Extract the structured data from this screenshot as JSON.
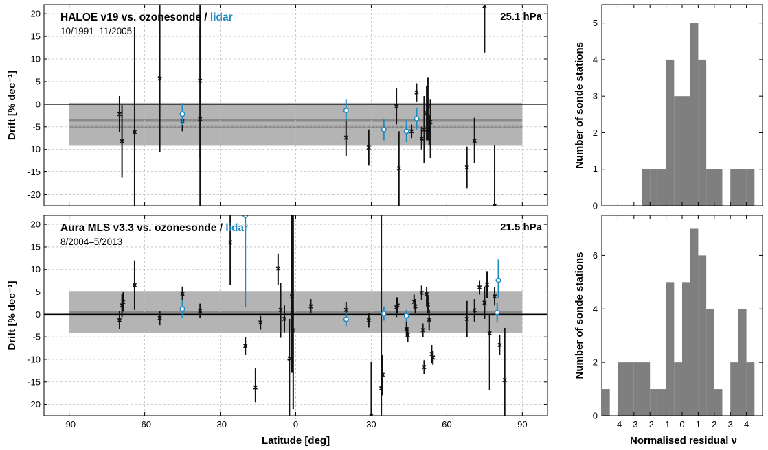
{
  "colors": {
    "sonde": "#111111",
    "lidar": "#1f8ac0",
    "band_outer": "#b4b4b4",
    "band_inner": "#8a8a8a",
    "hist": "#7f7f7f",
    "grid": "#bdbdbd"
  },
  "chart_data": [
    {
      "type": "scatter",
      "id": "drift-haloe",
      "title_prefix": "HALOE v19 vs. ozonesonde / ",
      "title_lidar": "lidar",
      "subtitle": "10/1991–11/2005",
      "level": "25.1 hPa",
      "ylabel": "Drift [% dec⁻¹]",
      "xlabel": "",
      "xlim": [
        -100,
        100
      ],
      "ylim": [
        -22.5,
        22
      ],
      "xticks": [
        -90,
        -60,
        -30,
        0,
        30,
        60,
        90
      ],
      "yticks": [
        -20,
        -15,
        -10,
        -5,
        0,
        5,
        10,
        15,
        20
      ],
      "grid": true,
      "mean_lines": [
        -3.6,
        -5.0
      ],
      "band": [
        -9.2,
        0.3
      ],
      "series": [
        {
          "type": "sonde",
          "points": [
            {
              "x": -70,
              "y": -2.2,
              "lo": -6.2,
              "hi": 1.8
            },
            {
              "x": -69,
              "y": -8.2,
              "lo": -16.2,
              "hi": -0.2
            },
            {
              "x": -64,
              "y": -6.2,
              "lo": -22.5,
              "hi": 17
            },
            {
              "x": -54,
              "y": 5.7,
              "lo": -10.5,
              "hi": 22
            },
            {
              "x": -45,
              "y": -3.8,
              "lo": -6,
              "hi": -1.6
            },
            {
              "x": -38,
              "y": 5.2,
              "lo": -22.5,
              "hi": 22
            },
            {
              "x": -38,
              "y": -3.3,
              "lo": -12,
              "hi": 17
            },
            {
              "x": 20,
              "y": -7.4,
              "lo": -11.4,
              "hi": -3.4
            },
            {
              "x": 29,
              "y": -9.6,
              "lo": -13.6,
              "hi": -5.6
            },
            {
              "x": 40,
              "y": -0.5,
              "lo": -4.5,
              "hi": 3.5
            },
            {
              "x": 41,
              "y": -14.2,
              "lo": -22.5,
              "hi": -6
            },
            {
              "x": 46,
              "y": -6.0,
              "lo": -7.5,
              "hi": -4.5
            },
            {
              "x": 48,
              "y": 2.6,
              "lo": 0.6,
              "hi": 4.6
            },
            {
              "x": 50,
              "y": -7.6,
              "lo": -10,
              "hi": -5
            },
            {
              "x": 51,
              "y": -5.6,
              "lo": -13,
              "hi": 1.8
            },
            {
              "x": 52,
              "y": -2.0,
              "lo": -8,
              "hi": 4
            },
            {
              "x": 52.5,
              "y": -0.5,
              "lo": -8,
              "hi": 6
            },
            {
              "x": 53,
              "y": -5.7,
              "lo": -9,
              "hi": -2.4
            },
            {
              "x": 53.5,
              "y": -4.0,
              "lo": -12,
              "hi": 1
            },
            {
              "x": 68,
              "y": -14.0,
              "lo": -18.6,
              "hi": -9.4
            },
            {
              "x": 71,
              "y": -8.1,
              "lo": -13,
              "hi": -3
            },
            {
              "x": 75,
              "y": 21.8,
              "lo": 11.4,
              "hi": 22
            },
            {
              "x": 79,
              "y": -22.5,
              "lo": -22.5,
              "hi": -9
            }
          ]
        },
        {
          "type": "lidar",
          "points": [
            {
              "x": -45,
              "y": -2.2,
              "lo": -4.6,
              "hi": 0.2
            },
            {
              "x": 20,
              "y": -1.4,
              "lo": -3.8,
              "hi": 1
            },
            {
              "x": 35,
              "y": -5.6,
              "lo": -8,
              "hi": -3.2
            },
            {
              "x": 44,
              "y": -6.0,
              "lo": -8.4,
              "hi": -3.6
            },
            {
              "x": 48,
              "y": -3.2,
              "lo": -5.6,
              "hi": -0.8
            }
          ]
        }
      ]
    },
    {
      "type": "scatter",
      "id": "drift-mls",
      "title_prefix": "Aura MLS v3.3 vs. ozonesonde / ",
      "title_lidar": "lidar",
      "subtitle": "8/2004–5/2013",
      "level": "21.5 hPa",
      "ylabel": "Drift [% dec⁻¹]",
      "xlabel": "Latitude [deg]",
      "xlim": [
        -100,
        100
      ],
      "ylim": [
        -22.5,
        22
      ],
      "xticks": [
        -90,
        -60,
        -30,
        0,
        30,
        60,
        90
      ],
      "yticks": [
        -20,
        -15,
        -10,
        -5,
        0,
        5,
        10,
        15,
        20
      ],
      "grid": true,
      "mean_lines": [
        0.5
      ],
      "band": [
        -4.2,
        5.2
      ],
      "series": [
        {
          "type": "sonde",
          "points": [
            {
              "x": -70,
              "y": -1.3,
              "lo": -3.3,
              "hi": 0.7
            },
            {
              "x": -69,
              "y": 2.0,
              "lo": -0.6,
              "hi": 4.6
            },
            {
              "x": -68.5,
              "y": 2.8,
              "lo": 0.6,
              "hi": 5
            },
            {
              "x": -64,
              "y": 6.5,
              "lo": 1,
              "hi": 12
            },
            {
              "x": -54,
              "y": -0.8,
              "lo": -2.4,
              "hi": 0.8
            },
            {
              "x": -45,
              "y": 4.6,
              "lo": 3,
              "hi": 6.2
            },
            {
              "x": -38,
              "y": 0.8,
              "lo": -0.8,
              "hi": 2.4
            },
            {
              "x": -26,
              "y": 16.0,
              "lo": 6.5,
              "hi": 22
            },
            {
              "x": -20,
              "y": -7.0,
              "lo": -9,
              "hi": -5
            },
            {
              "x": -16,
              "y": -16.2,
              "lo": -19.5,
              "hi": -12
            },
            {
              "x": -14,
              "y": -1.8,
              "lo": -3.4,
              "hi": -0.2
            },
            {
              "x": -7,
              "y": 10.2,
              "lo": 6.5,
              "hi": 13.5
            },
            {
              "x": -6,
              "y": 1.0,
              "lo": -5.2,
              "hi": 7
            },
            {
              "x": -4.5,
              "y": -1.0,
              "lo": -4,
              "hi": 2
            },
            {
              "x": -2.5,
              "y": -9.8,
              "lo": -22.5,
              "hi": -1
            },
            {
              "x": -1.5,
              "y": 4.0,
              "lo": -13,
              "hi": 22
            },
            {
              "x": -1,
              "y": -3.5,
              "lo": -21,
              "hi": 22
            },
            {
              "x": 6,
              "y": 1.8,
              "lo": 0.2,
              "hi": 3.4
            },
            {
              "x": 20,
              "y": 1.0,
              "lo": -0.8,
              "hi": 2.8
            },
            {
              "x": 29,
              "y": -1.3,
              "lo": -2.9,
              "hi": 0.3
            },
            {
              "x": 30,
              "y": -22.5,
              "lo": -22.5,
              "hi": -10.5
            },
            {
              "x": 34,
              "y": -16.4,
              "lo": -22.5,
              "hi": 22
            },
            {
              "x": 34.5,
              "y": -13.4,
              "lo": -18,
              "hi": -9
            },
            {
              "x": 40,
              "y": 1.6,
              "lo": -0.6,
              "hi": 3.8
            },
            {
              "x": 40.5,
              "y": 2.0,
              "lo": 0.2,
              "hi": 3.8
            },
            {
              "x": 44,
              "y": -3.2,
              "lo": -5,
              "hi": -1.4
            },
            {
              "x": 44.5,
              "y": -4.6,
              "lo": -6.2,
              "hi": -3
            },
            {
              "x": 47,
              "y": 2.8,
              "lo": 1.2,
              "hi": 4.4
            },
            {
              "x": 47.5,
              "y": 1.8,
              "lo": 0.2,
              "hi": 3.4
            },
            {
              "x": 50,
              "y": 4.8,
              "lo": 3.2,
              "hi": 6.4
            },
            {
              "x": 50.5,
              "y": -3.5,
              "lo": -5,
              "hi": -2
            },
            {
              "x": 51,
              "y": -11.7,
              "lo": -13.2,
              "hi": -10.2
            },
            {
              "x": 52,
              "y": 4.5,
              "lo": 2,
              "hi": 6
            },
            {
              "x": 52.5,
              "y": 2.2,
              "lo": 0.2,
              "hi": 4.2
            },
            {
              "x": 53,
              "y": -1.2,
              "lo": -3.5,
              "hi": 1
            },
            {
              "x": 54,
              "y": -8.8,
              "lo": -10.8,
              "hi": -6.8
            },
            {
              "x": 54.5,
              "y": -9.6,
              "lo": -11.2,
              "hi": -8
            },
            {
              "x": 68,
              "y": -1.0,
              "lo": -5,
              "hi": 3
            },
            {
              "x": 71,
              "y": 0.9,
              "lo": -1.6,
              "hi": 3.4
            },
            {
              "x": 73,
              "y": 6.0,
              "lo": 4.4,
              "hi": 7.6
            },
            {
              "x": 75,
              "y": 2.6,
              "lo": -1,
              "hi": 6.2
            },
            {
              "x": 76,
              "y": 6.6,
              "lo": 3.6,
              "hi": 9.6
            },
            {
              "x": 77,
              "y": -4.2,
              "lo": -16.8,
              "hi": 0
            },
            {
              "x": 79,
              "y": 4.0,
              "lo": 2,
              "hi": 6
            },
            {
              "x": 81,
              "y": -6.8,
              "lo": -9,
              "hi": -4.6
            },
            {
              "x": 83,
              "y": -14.6,
              "lo": -22.5,
              "hi": -3
            }
          ]
        },
        {
          "type": "lidar",
          "points": [
            {
              "x": -45,
              "y": 1.2,
              "lo": -0.8,
              "hi": 3.2
            },
            {
              "x": -20,
              "y": 22,
              "lo": 1.6,
              "hi": 22
            },
            {
              "x": 20,
              "y": -1.1,
              "lo": -2.6,
              "hi": 0.4
            },
            {
              "x": 35,
              "y": 0.2,
              "lo": -1.4,
              "hi": 1.8
            },
            {
              "x": 44,
              "y": -0.3,
              "lo": -1.6,
              "hi": 1
            },
            {
              "x": 80,
              "y": 0.4,
              "lo": -1.8,
              "hi": 2.6
            },
            {
              "x": 80.5,
              "y": 7.6,
              "lo": 3.6,
              "hi": 12.2
            }
          ]
        }
      ]
    },
    {
      "type": "bar",
      "id": "hist-haloe",
      "ylabel": "Number of sonde stations",
      "xlabel": "",
      "xlim": [
        -5,
        5
      ],
      "ylim": [
        0,
        5.5
      ],
      "yticks": [
        0,
        1,
        2,
        3,
        4,
        5
      ],
      "bin_width": 0.5,
      "bin_starts": [
        -2.5,
        -2,
        -1.5,
        -1,
        -0.5,
        0,
        0.5,
        1,
        1.5,
        2,
        3,
        3.5,
        4
      ],
      "values": [
        1,
        1,
        1,
        4,
        3,
        3,
        5,
        4,
        1,
        1,
        1,
        1,
        1
      ]
    },
    {
      "type": "bar",
      "id": "hist-mls",
      "ylabel": "Number of sonde stations",
      "xlabel": "Normalised residual ν",
      "xlim": [
        -5,
        5
      ],
      "ylim": [
        0,
        7.5
      ],
      "yticks": [
        0,
        2,
        4,
        6
      ],
      "xtick_labels": [
        "-4",
        "-3",
        "-2",
        "-1",
        "0",
        "1",
        "2",
        "3",
        "4"
      ],
      "bin_width": 0.5,
      "bin_starts": [
        -5,
        -4.5,
        -4,
        -3.5,
        -3,
        -2.5,
        -2,
        -1.5,
        -1,
        -0.5,
        0,
        0.5,
        1,
        1.5,
        2,
        3,
        3.5,
        4
      ],
      "values": [
        1,
        0,
        2,
        2,
        2,
        2,
        1,
        1,
        5,
        2,
        5,
        7,
        6,
        4,
        1,
        2,
        4,
        2
      ]
    }
  ]
}
